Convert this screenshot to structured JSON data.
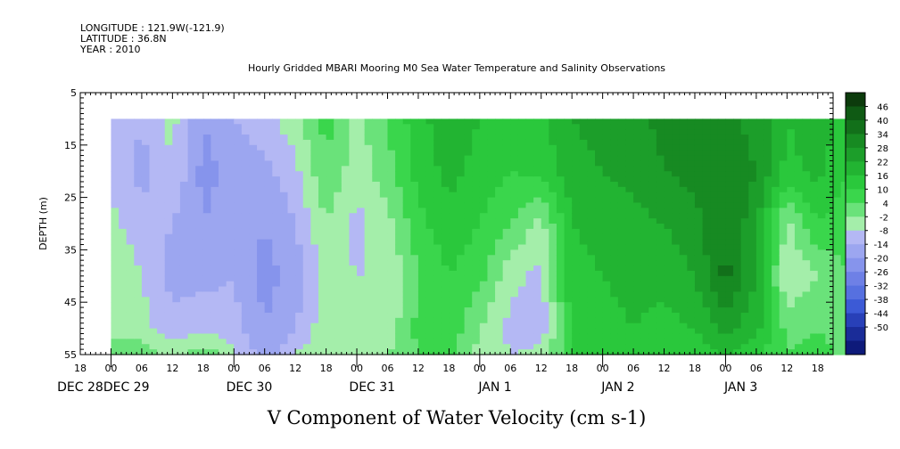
{
  "header": {
    "longitude": "LONGITUDE : 121.9W(-121.9)",
    "latitude": "LATITUDE : 36.8N",
    "year": "YEAR : 2010"
  },
  "chart_data": {
    "type": "heatmap",
    "title": "Hourly Gridded MBARI Mooring M0 Sea Water Temperature and Salinity Observations",
    "xlabel": "V Component of Water Velocity (cm s-1)",
    "ylabel": "DEPTH (m)",
    "ylim": [
      5,
      55
    ],
    "y_inverted": true,
    "y_ticks": [
      "5",
      "15",
      "25",
      "35",
      "45",
      "55"
    ],
    "x_hour_labels": [
      "18",
      "00",
      "06",
      "12",
      "18",
      "00",
      "06",
      "12",
      "18",
      "00",
      "06",
      "12",
      "18",
      "00",
      "06",
      "12",
      "18",
      "00",
      "06",
      "12",
      "18",
      "00",
      "06",
      "12",
      "18"
    ],
    "x_day_labels": [
      "DEC 28",
      "DEC 29",
      "DEC 30",
      "DEC 31",
      "JAN  1",
      "JAN  2",
      "JAN  3"
    ],
    "x_start_hour": "2010-12-28T18:00",
    "x_hours": 147,
    "data_start_hour": "2010-12-29T00:00",
    "depth_top": 10,
    "colorbar_levels": [
      "46",
      "40",
      "34",
      "28",
      "22",
      "16",
      "10",
      "4",
      "-2",
      "-8",
      "-14",
      "-20",
      "-26",
      "-32",
      "-38",
      "-44",
      "-50"
    ],
    "colorbar_colors": [
      "#0c3b0c",
      "#0f5a14",
      "#12701a",
      "#178a22",
      "#1c9e2a",
      "#22b432",
      "#2ac83c",
      "#3ad64c",
      "#6ae27a",
      "#a4eeaa",
      "#b4b8f4",
      "#9ca6f0",
      "#8694ec",
      "#6e80e6",
      "#5670e0",
      "#3c5ad6",
      "#2840b8",
      "#1a2c98",
      "#0e1a7a"
    ],
    "profile": {
      "hours": [
        0,
        6,
        12,
        18,
        24,
        30,
        36,
        42,
        48,
        54,
        60,
        66,
        72,
        78,
        84,
        90,
        96,
        102,
        108,
        114,
        120,
        126,
        132,
        138,
        144
      ],
      "depths": [
        10,
        20,
        30,
        40,
        50,
        55
      ],
      "values": [
        [
          -8,
          -10,
          -6,
          -2,
          -4,
          2
        ],
        [
          -14,
          -16,
          -12,
          -8,
          -6,
          2
        ],
        [
          -6,
          -8,
          -14,
          -16,
          -12,
          -4
        ],
        [
          -20,
          -22,
          -20,
          -16,
          -10,
          2
        ],
        [
          -14,
          -18,
          -16,
          -14,
          -12,
          -6
        ],
        [
          -10,
          -16,
          -20,
          -22,
          -20,
          -18
        ],
        [
          -4,
          -10,
          -14,
          -18,
          -14,
          -8
        ],
        [
          6,
          4,
          -2,
          -6,
          -4,
          -2
        ],
        [
          -4,
          -6,
          -10,
          -8,
          -6,
          -4
        ],
        [
          4,
          2,
          -4,
          -8,
          -6,
          -2
        ],
        [
          14,
          12,
          8,
          4,
          6,
          4
        ],
        [
          20,
          18,
          14,
          10,
          8,
          6
        ],
        [
          16,
          14,
          10,
          6,
          -2,
          -4
        ],
        [
          12,
          10,
          4,
          -6,
          -10,
          -8
        ],
        [
          14,
          12,
          -4,
          -10,
          -12,
          -6
        ],
        [
          22,
          20,
          16,
          14,
          12,
          10
        ],
        [
          24,
          22,
          18,
          16,
          14,
          12
        ],
        [
          26,
          24,
          20,
          18,
          16,
          12
        ],
        [
          30,
          28,
          22,
          18,
          14,
          10
        ],
        [
          34,
          30,
          26,
          22,
          16,
          12
        ],
        [
          30,
          32,
          34,
          36,
          24,
          16
        ],
        [
          26,
          28,
          24,
          22,
          18,
          12
        ],
        [
          16,
          14,
          -4,
          -8,
          2,
          4
        ],
        [
          20,
          18,
          10,
          -2,
          4,
          6
        ],
        [
          12,
          10,
          6,
          4,
          2,
          2
        ]
      ]
    }
  }
}
